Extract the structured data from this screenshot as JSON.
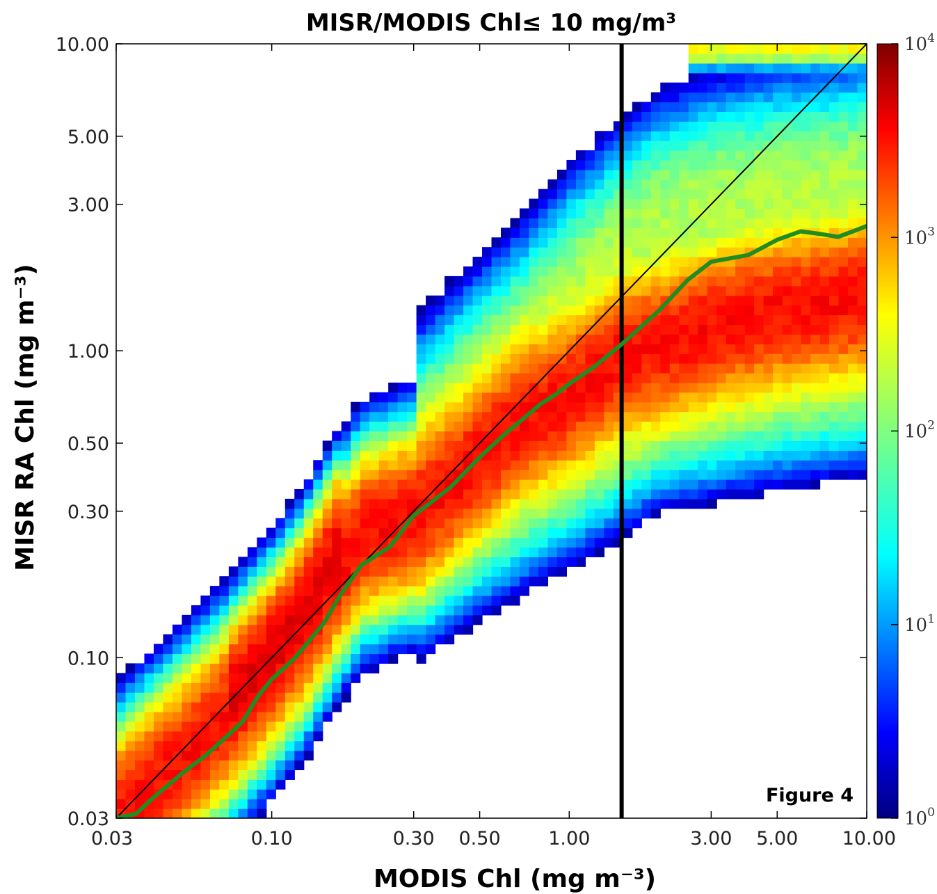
{
  "chart_data": {
    "type": "heatmap",
    "title": "MISR/MODIS Chl≤ 10 mg/m³",
    "xlabel": "MODIS Chl (mg m⁻³)",
    "ylabel": "MISR RA Chl (mg m⁻³)",
    "x_scale": "log",
    "y_scale": "log",
    "xlim": [
      0.03,
      10.0
    ],
    "ylim": [
      0.03,
      10.0
    ],
    "x_ticks": [
      0.03,
      0.1,
      0.3,
      0.5,
      1.0,
      3.0,
      5.0,
      10.0
    ],
    "x_tick_labels": [
      "0.03",
      "0.10",
      "0.30",
      "0.50",
      "1.00",
      "3.00",
      "5.00",
      "10.00"
    ],
    "y_ticks": [
      0.03,
      0.1,
      0.3,
      0.5,
      1.0,
      3.0,
      5.0,
      10.0
    ],
    "y_tick_labels": [
      "0.03",
      "0.10",
      "0.30",
      "0.50",
      "1.00",
      "3.00",
      "5.00",
      "10.00"
    ],
    "colorbar": {
      "scale": "log",
      "range": [
        1,
        10000
      ],
      "ticks": [
        1,
        10,
        100,
        1000,
        10000
      ],
      "tick_base": "10",
      "tick_exponents": [
        "0",
        "1",
        "2",
        "3",
        "4"
      ],
      "colormap": "jet"
    },
    "annotation": "Figure 4",
    "reference_lines": {
      "one_to_one": {
        "from": [
          0.03,
          0.03
        ],
        "to": [
          10.0,
          10.0
        ],
        "color": "#000000"
      },
      "vertical_x": 1.5
    },
    "median_line": {
      "color": "#228b22",
      "x": [
        0.03,
        0.035,
        0.04,
        0.05,
        0.06,
        0.07,
        0.08,
        0.09,
        0.1,
        0.12,
        0.15,
        0.17,
        0.2,
        0.25,
        0.3,
        0.4,
        0.5,
        0.6,
        0.7,
        0.8,
        0.9,
        1.0,
        1.2,
        1.5,
        2.0,
        2.5,
        3.0,
        4.0,
        5.0,
        6.0,
        7.0,
        8.0,
        9.0,
        10.0
      ],
      "y": [
        0.03,
        0.031,
        0.035,
        0.042,
        0.048,
        0.055,
        0.062,
        0.075,
        0.085,
        0.1,
        0.13,
        0.16,
        0.2,
        0.23,
        0.29,
        0.36,
        0.45,
        0.53,
        0.6,
        0.67,
        0.72,
        0.78,
        0.88,
        1.05,
        1.35,
        1.7,
        1.95,
        2.05,
        2.3,
        2.45,
        2.4,
        2.35,
        2.45,
        2.55
      ]
    },
    "density_ridges": [
      {
        "x": [
          0.03,
          0.05,
          0.07,
          0.1,
          0.13,
          0.16,
          0.2,
          0.3,
          0.5,
          0.7,
          1.0,
          1.5,
          2.0,
          3.0,
          5.0,
          10.0
        ],
        "y": [
          0.03,
          0.047,
          0.065,
          0.095,
          0.13,
          0.18,
          0.25,
          0.29,
          0.45,
          0.6,
          0.72,
          0.95,
          1.05,
          1.2,
          1.35,
          1.5
        ],
        "peak_count": 3000,
        "width": 0.24
      },
      {
        "x": [
          0.07,
          0.09,
          0.11,
          0.13,
          0.15,
          0.17
        ],
        "y": [
          0.075,
          0.1,
          0.13,
          0.17,
          0.22,
          0.27
        ],
        "peak_count": 1500,
        "width": 0.18
      },
      {
        "x": [
          0.3,
          0.5,
          0.7,
          1.0,
          1.5,
          2.0,
          3.0,
          5.0,
          10.0
        ],
        "y": [
          0.5,
          0.8,
          1.1,
          1.6,
          2.3,
          2.8,
          3.2,
          3.5,
          3.8
        ],
        "peak_count": 150,
        "width": 0.28
      },
      {
        "x": [
          0.3,
          0.5,
          0.7,
          1.0,
          1.5,
          2.0,
          3.0,
          5.0,
          10.0
        ],
        "y": [
          0.2,
          0.27,
          0.33,
          0.4,
          0.5,
          0.6,
          0.65,
          0.72,
          0.8
        ],
        "peak_count": 120,
        "width": 0.22
      },
      {
        "x": [
          2.5,
          4.0,
          6.0,
          10.0
        ],
        "y": [
          9.5,
          9.6,
          9.6,
          9.6
        ],
        "peak_count": 300,
        "width": 0.05
      }
    ]
  }
}
